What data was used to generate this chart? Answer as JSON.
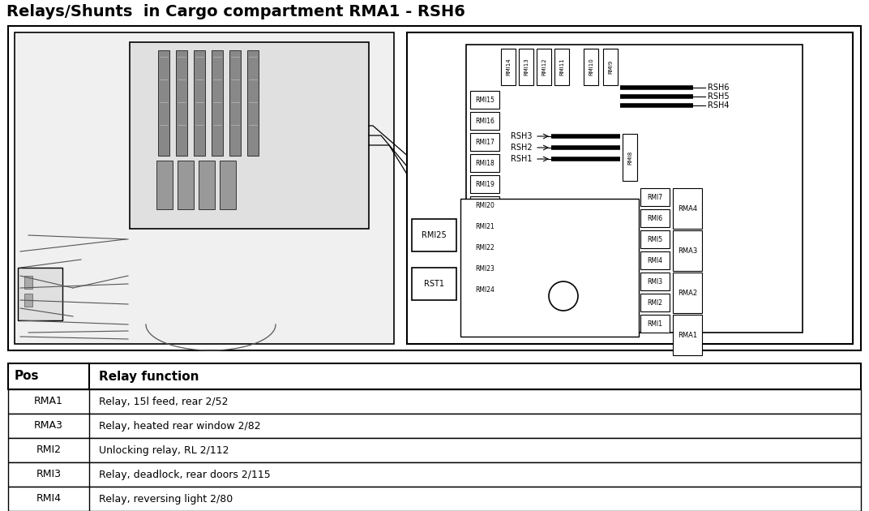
{
  "title": "Relays/Shunts  in Cargo compartment RMA1 - RSH6",
  "bg_color": "#ffffff",
  "table_rows": [
    [
      "RMA1",
      "Relay, 15l feed, rear 2/52"
    ],
    [
      "RMA3",
      "Relay, heated rear window 2/82"
    ],
    [
      "RMI2",
      "Unlocking relay, RL 2/112"
    ],
    [
      "RMI3",
      "Relay, deadlock, rear doors 2/115"
    ],
    [
      "RMI4",
      "Relay, reversing light 2/80"
    ]
  ],
  "table_header": [
    "Pos",
    "Relay function"
  ]
}
